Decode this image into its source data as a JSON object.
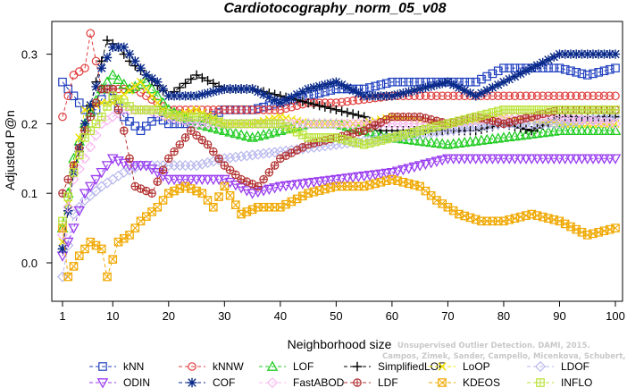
{
  "chart_data": {
    "type": "line",
    "title": "Cardiotocography_norm_05_v08",
    "xlabel": "Neighborhood size",
    "ylabel": "Adjusted P@n",
    "xlim": [
      1,
      100
    ],
    "ylim": [
      -0.05,
      0.34
    ],
    "x_ticks": [
      1,
      10,
      20,
      30,
      40,
      50,
      60,
      70,
      80,
      90,
      100
    ],
    "y_ticks": [
      0.0,
      0.1,
      0.2,
      0.3
    ],
    "y_tick_labels": [
      "0.0",
      "0.1",
      "0.2",
      "0.3"
    ],
    "grid": false,
    "legend_position": "bottom",
    "series": [
      {
        "name": "kNN",
        "color": "#1f3fbf",
        "marker": "square",
        "points": [
          [
            1,
            0.26
          ],
          [
            3,
            0.24
          ],
          [
            5,
            0.22
          ],
          [
            7,
            0.22
          ],
          [
            9,
            0.25
          ],
          [
            12,
            0.21
          ],
          [
            15,
            0.19
          ],
          [
            18,
            0.21
          ],
          [
            20,
            0.2
          ],
          [
            25,
            0.2
          ],
          [
            30,
            0.22
          ],
          [
            35,
            0.22
          ],
          [
            40,
            0.23
          ],
          [
            45,
            0.24
          ],
          [
            50,
            0.25
          ],
          [
            55,
            0.25
          ],
          [
            60,
            0.26
          ],
          [
            65,
            0.26
          ],
          [
            70,
            0.26
          ],
          [
            75,
            0.26
          ],
          [
            80,
            0.28
          ],
          [
            85,
            0.28
          ],
          [
            90,
            0.28
          ],
          [
            95,
            0.27
          ],
          [
            100,
            0.28
          ]
        ]
      },
      {
        "name": "kNNW",
        "color": "#e03c3c",
        "marker": "circle",
        "points": [
          [
            1,
            0.21
          ],
          [
            3,
            0.27
          ],
          [
            5,
            0.28
          ],
          [
            6,
            0.33
          ],
          [
            8,
            0.25
          ],
          [
            10,
            0.25
          ],
          [
            14,
            0.25
          ],
          [
            18,
            0.23
          ],
          [
            20,
            0.22
          ],
          [
            25,
            0.22
          ],
          [
            30,
            0.22
          ],
          [
            35,
            0.22
          ],
          [
            40,
            0.22
          ],
          [
            45,
            0.23
          ],
          [
            50,
            0.23
          ],
          [
            60,
            0.24
          ],
          [
            70,
            0.24
          ],
          [
            80,
            0.24
          ],
          [
            90,
            0.24
          ],
          [
            100,
            0.24
          ]
        ]
      },
      {
        "name": "LOF",
        "color": "#22cc22",
        "marker": "triangle-up",
        "points": [
          [
            1,
            0.05
          ],
          [
            3,
            0.15
          ],
          [
            5,
            0.2
          ],
          [
            8,
            0.25
          ],
          [
            10,
            0.27
          ],
          [
            13,
            0.25
          ],
          [
            16,
            0.26
          ],
          [
            20,
            0.22
          ],
          [
            25,
            0.2
          ],
          [
            30,
            0.19
          ],
          [
            35,
            0.18
          ],
          [
            40,
            0.19
          ],
          [
            45,
            0.2
          ],
          [
            50,
            0.2
          ],
          [
            55,
            0.19
          ],
          [
            60,
            0.18
          ],
          [
            70,
            0.17
          ],
          [
            80,
            0.18
          ],
          [
            90,
            0.19
          ],
          [
            100,
            0.19
          ]
        ]
      },
      {
        "name": "SimplifiedLOF",
        "color": "#000000",
        "marker": "plus",
        "points": [
          [
            1,
            0.02
          ],
          [
            3,
            0.13
          ],
          [
            5,
            0.19
          ],
          [
            7,
            0.26
          ],
          [
            9,
            0.32
          ],
          [
            11,
            0.31
          ],
          [
            13,
            0.29
          ],
          [
            16,
            0.27
          ],
          [
            20,
            0.24
          ],
          [
            25,
            0.27
          ],
          [
            30,
            0.25
          ],
          [
            35,
            0.25
          ],
          [
            40,
            0.24
          ],
          [
            45,
            0.23
          ],
          [
            50,
            0.22
          ],
          [
            55,
            0.21
          ],
          [
            58,
            0.19
          ],
          [
            65,
            0.19
          ],
          [
            70,
            0.19
          ],
          [
            75,
            0.19
          ],
          [
            80,
            0.2
          ],
          [
            85,
            0.19
          ],
          [
            90,
            0.21
          ],
          [
            95,
            0.21
          ],
          [
            100,
            0.21
          ]
        ]
      },
      {
        "name": "LoOP",
        "color": "#f0e000",
        "marker": "x",
        "points": [
          [
            1,
            0.03
          ],
          [
            3,
            0.14
          ],
          [
            5,
            0.22
          ],
          [
            8,
            0.23
          ],
          [
            10,
            0.23
          ],
          [
            15,
            0.26
          ],
          [
            20,
            0.21
          ],
          [
            25,
            0.22
          ],
          [
            30,
            0.2
          ],
          [
            35,
            0.2
          ],
          [
            40,
            0.21
          ],
          [
            45,
            0.2
          ],
          [
            50,
            0.2
          ],
          [
            55,
            0.2
          ],
          [
            60,
            0.21
          ],
          [
            70,
            0.2
          ],
          [
            80,
            0.21
          ],
          [
            90,
            0.2
          ],
          [
            100,
            0.2
          ]
        ]
      },
      {
        "name": "LDOF",
        "color": "#b7b7ee",
        "marker": "diamond",
        "points": [
          [
            1,
            -0.02
          ],
          [
            3,
            0.07
          ],
          [
            5,
            0.09
          ],
          [
            8,
            0.11
          ],
          [
            12,
            0.13
          ],
          [
            15,
            0.14
          ],
          [
            20,
            0.14
          ],
          [
            25,
            0.14
          ],
          [
            30,
            0.15
          ],
          [
            40,
            0.16
          ],
          [
            50,
            0.17
          ],
          [
            60,
            0.18
          ],
          [
            70,
            0.19
          ],
          [
            80,
            0.2
          ],
          [
            90,
            0.2
          ],
          [
            100,
            0.21
          ]
        ]
      },
      {
        "name": "ODIN",
        "color": "#9a3ef0",
        "marker": "triangle-down",
        "points": [
          [
            1,
            0.01
          ],
          [
            3,
            0.05
          ],
          [
            5,
            0.1
          ],
          [
            8,
            0.13
          ],
          [
            10,
            0.15
          ],
          [
            13,
            0.14
          ],
          [
            16,
            0.14
          ],
          [
            20,
            0.12
          ],
          [
            25,
            0.12
          ],
          [
            30,
            0.12
          ],
          [
            35,
            0.1
          ],
          [
            40,
            0.11
          ],
          [
            50,
            0.12
          ],
          [
            60,
            0.13
          ],
          [
            70,
            0.15
          ],
          [
            80,
            0.15
          ],
          [
            90,
            0.15
          ],
          [
            100,
            0.15
          ]
        ]
      },
      {
        "name": "COF",
        "color": "#0a2a8a",
        "marker": "star",
        "points": [
          [
            1,
            0.02
          ],
          [
            3,
            0.13
          ],
          [
            5,
            0.2
          ],
          [
            8,
            0.28
          ],
          [
            10,
            0.31
          ],
          [
            12,
            0.31
          ],
          [
            14,
            0.29
          ],
          [
            16,
            0.27
          ],
          [
            18,
            0.26
          ],
          [
            20,
            0.24
          ],
          [
            25,
            0.24
          ],
          [
            30,
            0.25
          ],
          [
            35,
            0.25
          ],
          [
            40,
            0.23
          ],
          [
            45,
            0.25
          ],
          [
            50,
            0.26
          ],
          [
            55,
            0.24
          ],
          [
            60,
            0.24
          ],
          [
            65,
            0.25
          ],
          [
            70,
            0.26
          ],
          [
            75,
            0.24
          ],
          [
            80,
            0.26
          ],
          [
            85,
            0.28
          ],
          [
            90,
            0.3
          ],
          [
            95,
            0.3
          ],
          [
            100,
            0.3
          ]
        ]
      },
      {
        "name": "FastABOD",
        "color": "#f7b7f0",
        "marker": "diamond",
        "points": [
          [
            1,
            0.04
          ],
          [
            3,
            0.12
          ],
          [
            5,
            0.15
          ],
          [
            8,
            0.2
          ],
          [
            12,
            0.22
          ],
          [
            16,
            0.22
          ],
          [
            20,
            0.21
          ],
          [
            25,
            0.2
          ],
          [
            30,
            0.2
          ],
          [
            40,
            0.2
          ],
          [
            50,
            0.2
          ],
          [
            60,
            0.2
          ],
          [
            70,
            0.2
          ],
          [
            80,
            0.21
          ],
          [
            90,
            0.21
          ],
          [
            100,
            0.2
          ]
        ]
      },
      {
        "name": "LDF",
        "color": "#b23030",
        "marker": "circle-plus",
        "points": [
          [
            1,
            0.1
          ],
          [
            3,
            0.14
          ],
          [
            5,
            0.19
          ],
          [
            8,
            0.25
          ],
          [
            10,
            0.25
          ],
          [
            12,
            0.19
          ],
          [
            14,
            0.11
          ],
          [
            17,
            0.1
          ],
          [
            20,
            0.15
          ],
          [
            24,
            0.19
          ],
          [
            27,
            0.17
          ],
          [
            30,
            0.14
          ],
          [
            33,
            0.12
          ],
          [
            36,
            0.11
          ],
          [
            40,
            0.15
          ],
          [
            45,
            0.17
          ],
          [
            50,
            0.18
          ],
          [
            55,
            0.19
          ],
          [
            60,
            0.21
          ],
          [
            65,
            0.21
          ],
          [
            70,
            0.2
          ],
          [
            75,
            0.21
          ],
          [
            80,
            0.2
          ],
          [
            85,
            0.21
          ],
          [
            90,
            0.22
          ],
          [
            95,
            0.22
          ],
          [
            100,
            0.22
          ]
        ]
      },
      {
        "name": "KDEOS",
        "color": "#f0a800",
        "marker": "square-x",
        "points": [
          [
            1,
            0.05
          ],
          [
            2,
            -0.02
          ],
          [
            4,
            0.01
          ],
          [
            6,
            0.03
          ],
          [
            8,
            0.02
          ],
          [
            9,
            -0.02
          ],
          [
            11,
            0.03
          ],
          [
            13,
            0.04
          ],
          [
            15,
            0.06
          ],
          [
            18,
            0.08
          ],
          [
            20,
            0.1
          ],
          [
            23,
            0.11
          ],
          [
            26,
            0.1
          ],
          [
            28,
            0.08
          ],
          [
            30,
            0.11
          ],
          [
            33,
            0.07
          ],
          [
            36,
            0.08
          ],
          [
            40,
            0.08
          ],
          [
            45,
            0.1
          ],
          [
            50,
            0.11
          ],
          [
            55,
            0.11
          ],
          [
            60,
            0.12
          ],
          [
            65,
            0.11
          ],
          [
            68,
            0.09
          ],
          [
            72,
            0.07
          ],
          [
            76,
            0.06
          ],
          [
            80,
            0.06
          ],
          [
            85,
            0.07
          ],
          [
            90,
            0.06
          ],
          [
            95,
            0.04
          ],
          [
            100,
            0.05
          ]
        ]
      },
      {
        "name": "INFLO",
        "color": "#b8e234",
        "marker": "hash",
        "points": [
          [
            1,
            0.06
          ],
          [
            3,
            0.13
          ],
          [
            5,
            0.18
          ],
          [
            8,
            0.21
          ],
          [
            10,
            0.24
          ],
          [
            14,
            0.22
          ],
          [
            18,
            0.22
          ],
          [
            22,
            0.21
          ],
          [
            26,
            0.21
          ],
          [
            30,
            0.2
          ],
          [
            35,
            0.2
          ],
          [
            40,
            0.2
          ],
          [
            45,
            0.18
          ],
          [
            50,
            0.18
          ],
          [
            55,
            0.17
          ],
          [
            60,
            0.18
          ],
          [
            65,
            0.19
          ],
          [
            70,
            0.2
          ],
          [
            75,
            0.21
          ],
          [
            80,
            0.22
          ],
          [
            85,
            0.22
          ],
          [
            90,
            0.22
          ],
          [
            95,
            0.22
          ],
          [
            100,
            0.22
          ]
        ]
      }
    ],
    "watermark": {
      "line1": "Unsupervised Outlier Detection. DAMI, 2015.",
      "line2": "Campos, Zimek, Sander, Campello, Micenkova, Schubert, Assent, Houle"
    }
  }
}
